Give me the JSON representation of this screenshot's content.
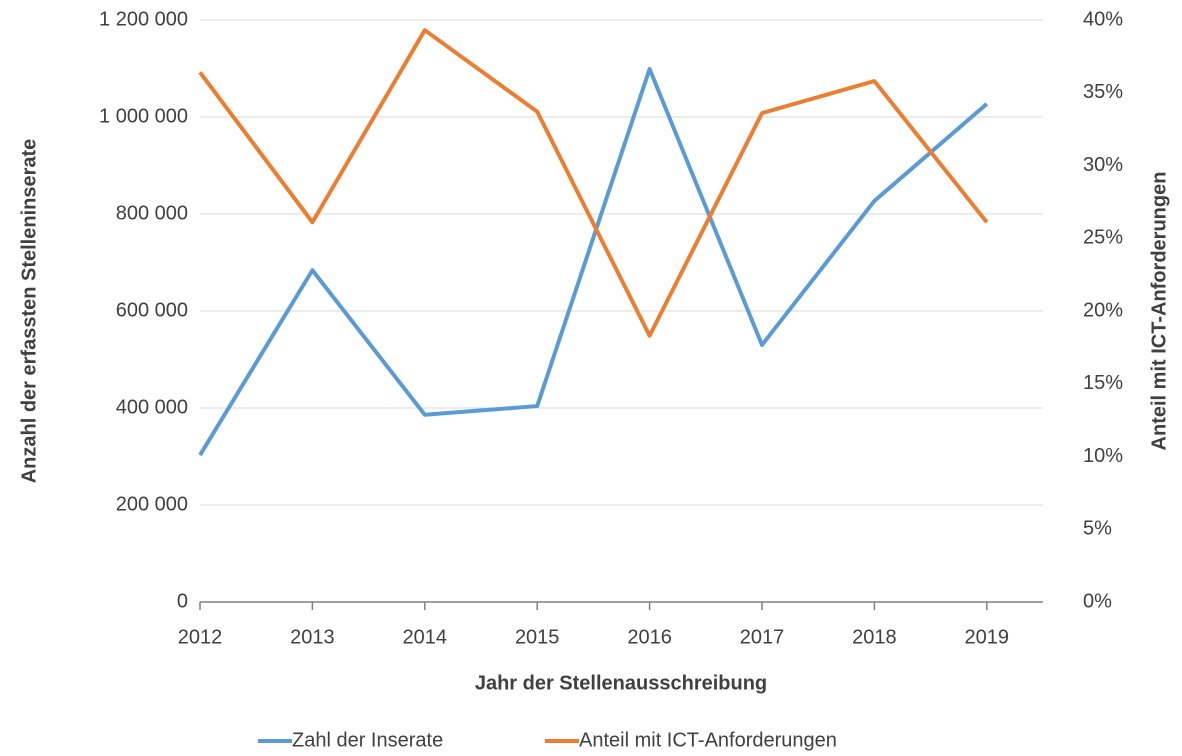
{
  "chart_data": {
    "type": "line",
    "xlabel": "Jahr der Stellenausschreibung",
    "ylabel": "Anzahl der erfassten Stelleninserate",
    "y2label": "Anteil mit ICT-Anforderungen",
    "categories": [
      "2012",
      "2013",
      "2014",
      "2015",
      "2016",
      "2017",
      "2018",
      "2019"
    ],
    "series": [
      {
        "name": "Zahl der Inserate",
        "color": "#5b9bd5",
        "values": [
          303000,
          684000,
          386000,
          404000,
          1099000,
          530000,
          827000,
          1027000
        ]
      },
      {
        "name": "Anteil mit ICT-Anforderungen",
        "color": "#ed7d31",
        "axis": "y2",
        "values": [
          36.4,
          26.1,
          39.3,
          33.7,
          18.3,
          33.6,
          35.8,
          26.1
        ]
      }
    ],
    "ylim": [
      0,
      1200000
    ],
    "yticks": [
      0,
      {
        "value": 200000,
        "label": "200 000"
      },
      {
        "value": 400000,
        "label": "400 000"
      },
      {
        "value": 600000,
        "label": "600 000"
      },
      {
        "value": 800000,
        "label": "800 000"
      },
      {
        "value": 1000000,
        "label": "1 000 000"
      },
      {
        "value": 1200000,
        "label": "1 200 000"
      }
    ],
    "y2lim": [
      0,
      40
    ],
    "y2ticks": [
      {
        "value": 0,
        "label": "0%"
      },
      {
        "value": 5,
        "label": "5%"
      },
      {
        "value": 10,
        "label": "10%"
      },
      {
        "value": 15,
        "label": "15%"
      },
      {
        "value": 20,
        "label": "20%"
      },
      {
        "value": 25,
        "label": "25%"
      },
      {
        "value": 30,
        "label": "30%"
      },
      {
        "value": 35,
        "label": "35%"
      },
      {
        "value": 40,
        "label": "40%"
      }
    ],
    "grid": true,
    "legend": "bottom"
  }
}
